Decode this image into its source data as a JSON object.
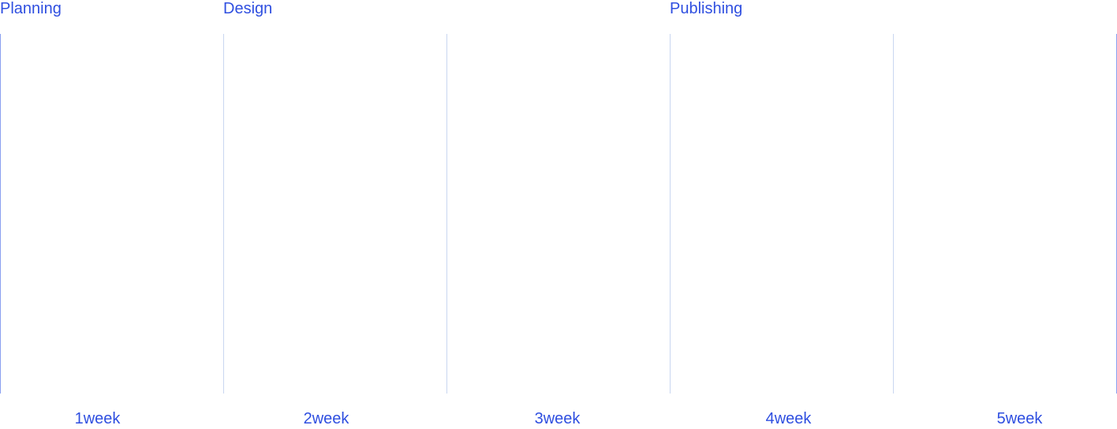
{
  "phases": {
    "planning": "Planning",
    "design": "Design",
    "publishing": "Publishing"
  },
  "weeks": [
    "1week",
    "2week",
    "3week",
    "4week",
    "5week"
  ],
  "colors": {
    "accent": "#2f4fe0",
    "grid_line": "#c9d6f0",
    "edge_line": "#8aa0f0"
  }
}
